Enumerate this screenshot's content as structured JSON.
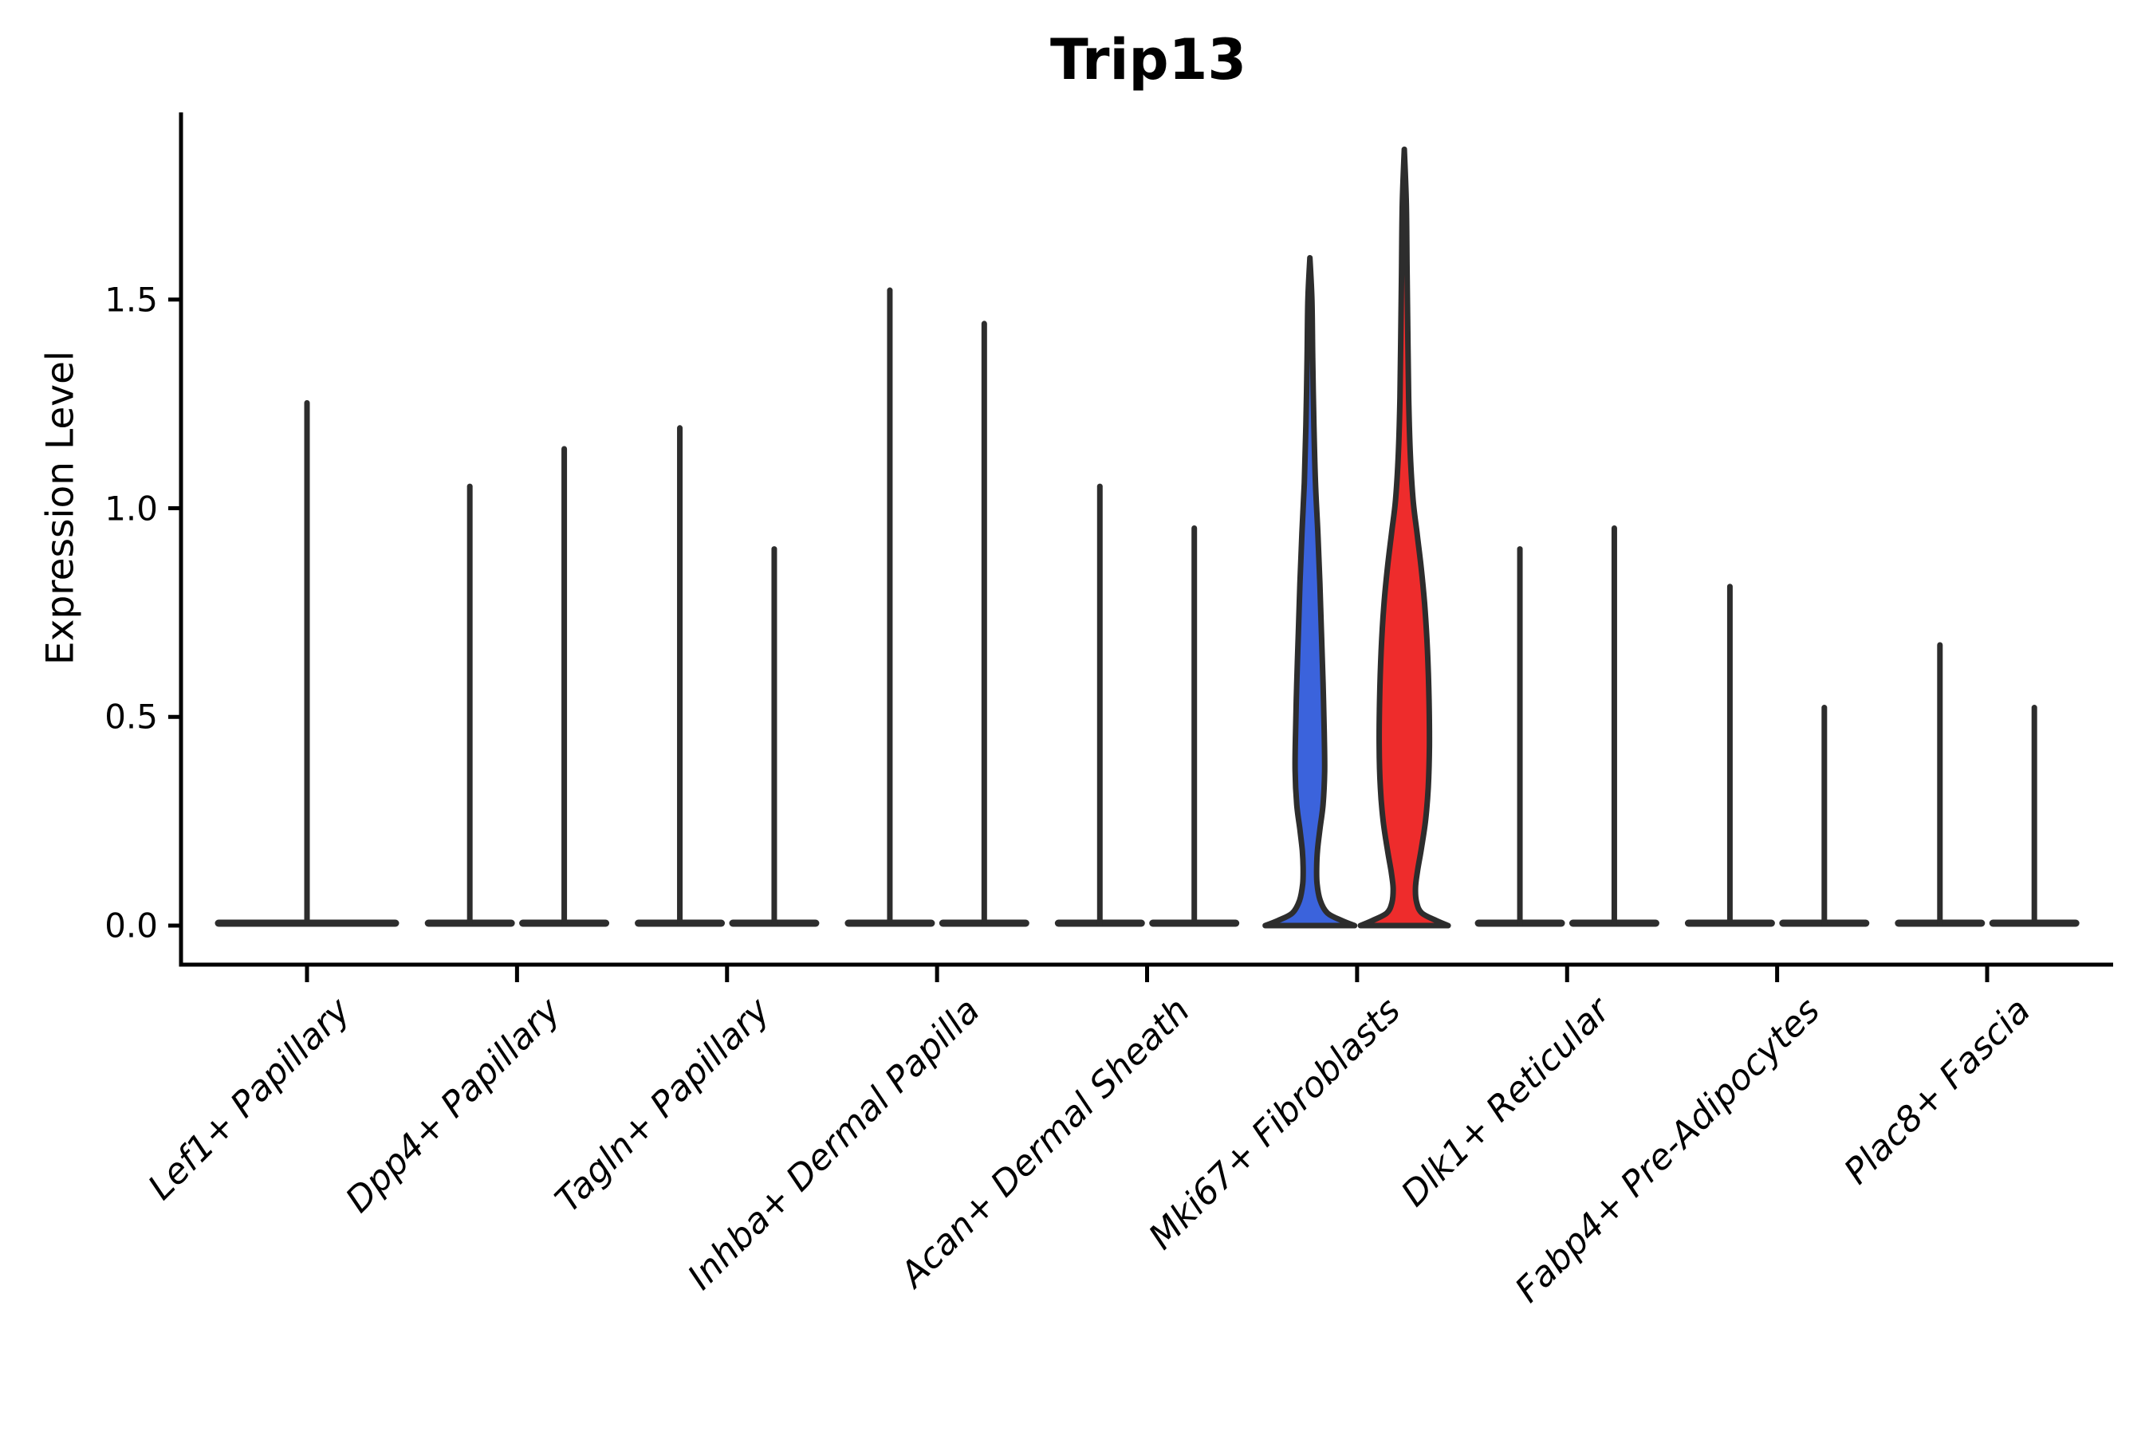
{
  "chart_data": {
    "type": "violin",
    "title": "Trip13",
    "ylabel": "Expression Level",
    "xlabel": "",
    "ytick_labels": [
      "0.0",
      "0.5",
      "1.0",
      "1.5"
    ],
    "ytick_values": [
      0.0,
      0.5,
      1.0,
      1.5
    ],
    "ylim": [
      -0.09,
      1.95
    ],
    "grid": false,
    "legend_position": "none",
    "xtick_rotation_deg": 45,
    "colors": {
      "group_blue": "#3b63dc",
      "group_red": "#ee2c2c",
      "outline": "#2d2d2d",
      "axis": "#000000"
    },
    "categories": [
      "Lef1+ Papillary",
      "Dpp4+ Papillary",
      "Tagln+ Papillary",
      "Inhba+ Dermal Papilla",
      "Acan+ Dermal Sheath",
      "Mki67+ Fibroblasts",
      "Dlk1+ Reticular",
      "Fabp4+ Pre-Adipocytes",
      "Plac8+ Fascia"
    ],
    "violins": [
      {
        "category": "Lef1+ Papillary",
        "items": [
          {
            "shape": "spike",
            "side": "center",
            "peak": 1.26,
            "color": "#2d2d2d"
          }
        ]
      },
      {
        "category": "Dpp4+ Papillary",
        "items": [
          {
            "shape": "spike",
            "side": "left",
            "peak": 1.06,
            "color": "#2d2d2d"
          },
          {
            "shape": "spike",
            "side": "right",
            "peak": 1.15,
            "color": "#2d2d2d"
          }
        ]
      },
      {
        "category": "Tagln+ Papillary",
        "items": [
          {
            "shape": "spike",
            "side": "left",
            "peak": 1.2,
            "color": "#2d2d2d"
          },
          {
            "shape": "spike",
            "side": "right",
            "peak": 0.91,
            "color": "#2d2d2d"
          }
        ]
      },
      {
        "category": "Inhba+ Dermal Papilla",
        "items": [
          {
            "shape": "spike",
            "side": "left",
            "peak": 1.53,
            "color": "#2d2d2d"
          },
          {
            "shape": "spike",
            "side": "right",
            "peak": 1.45,
            "color": "#2d2d2d"
          }
        ]
      },
      {
        "category": "Acan+ Dermal Sheath",
        "items": [
          {
            "shape": "spike",
            "side": "left",
            "peak": 1.06,
            "color": "#2d2d2d"
          },
          {
            "shape": "spike",
            "side": "right",
            "peak": 0.96,
            "color": "#2d2d2d"
          }
        ]
      },
      {
        "category": "Mki67+ Fibroblasts",
        "items": [
          {
            "shape": "violin",
            "side": "left",
            "peak": 1.6,
            "color": "#3b63dc",
            "profile": [
              [
                1.6,
                0
              ],
              [
                1.5,
                2.5
              ],
              [
                1.36,
                3.5
              ],
              [
                1.2,
                5
              ],
              [
                1.06,
                7
              ],
              [
                0.94,
                10
              ],
              [
                0.82,
                12.5
              ],
              [
                0.7,
                14.5
              ],
              [
                0.58,
                16.5
              ],
              [
                0.46,
                18
              ],
              [
                0.37,
                18.5
              ],
              [
                0.29,
                16.5
              ],
              [
                0.23,
                12.5
              ],
              [
                0.18,
                9.5
              ],
              [
                0.14,
                8.5
              ],
              [
                0.1,
                9
              ],
              [
                0.06,
                13
              ],
              [
                0.03,
                22
              ],
              [
                0.012,
                40
              ],
              [
                0,
                56
              ]
            ]
          },
          {
            "shape": "violin",
            "side": "right",
            "peak": 1.86,
            "color": "#ee2c2c",
            "profile": [
              [
                1.86,
                0
              ],
              [
                1.73,
                2.5
              ],
              [
                1.56,
                3.5
              ],
              [
                1.4,
                4.5
              ],
              [
                1.26,
                5.5
              ],
              [
                1.13,
                7.5
              ],
              [
                1.02,
                11
              ],
              [
                0.94,
                16
              ],
              [
                0.86,
                21
              ],
              [
                0.77,
                25.5
              ],
              [
                0.66,
                29
              ],
              [
                0.54,
                31
              ],
              [
                0.43,
                31.5
              ],
              [
                0.33,
                30
              ],
              [
                0.25,
                26.5
              ],
              [
                0.18,
                21
              ],
              [
                0.13,
                16.5
              ],
              [
                0.09,
                14
              ],
              [
                0.055,
                15.5
              ],
              [
                0.03,
                22
              ],
              [
                0.012,
                40
              ],
              [
                0,
                55
              ]
            ]
          }
        ]
      },
      {
        "category": "Dlk1+ Reticular",
        "items": [
          {
            "shape": "spike",
            "side": "left",
            "peak": 0.91,
            "color": "#2d2d2d"
          },
          {
            "shape": "spike",
            "side": "right",
            "peak": 0.96,
            "color": "#2d2d2d"
          }
        ]
      },
      {
        "category": "Fabp4+ Pre-Adipocytes",
        "items": [
          {
            "shape": "spike",
            "side": "left",
            "peak": 0.82,
            "color": "#2d2d2d"
          },
          {
            "shape": "spike",
            "side": "right",
            "peak": 0.53,
            "color": "#2d2d2d"
          }
        ]
      },
      {
        "category": "Plac8+ Fascia",
        "items": [
          {
            "shape": "spike",
            "side": "left",
            "peak": 0.68,
            "color": "#2d2d2d"
          },
          {
            "shape": "spike",
            "side": "right",
            "peak": 0.53,
            "color": "#2d2d2d"
          }
        ]
      }
    ]
  }
}
